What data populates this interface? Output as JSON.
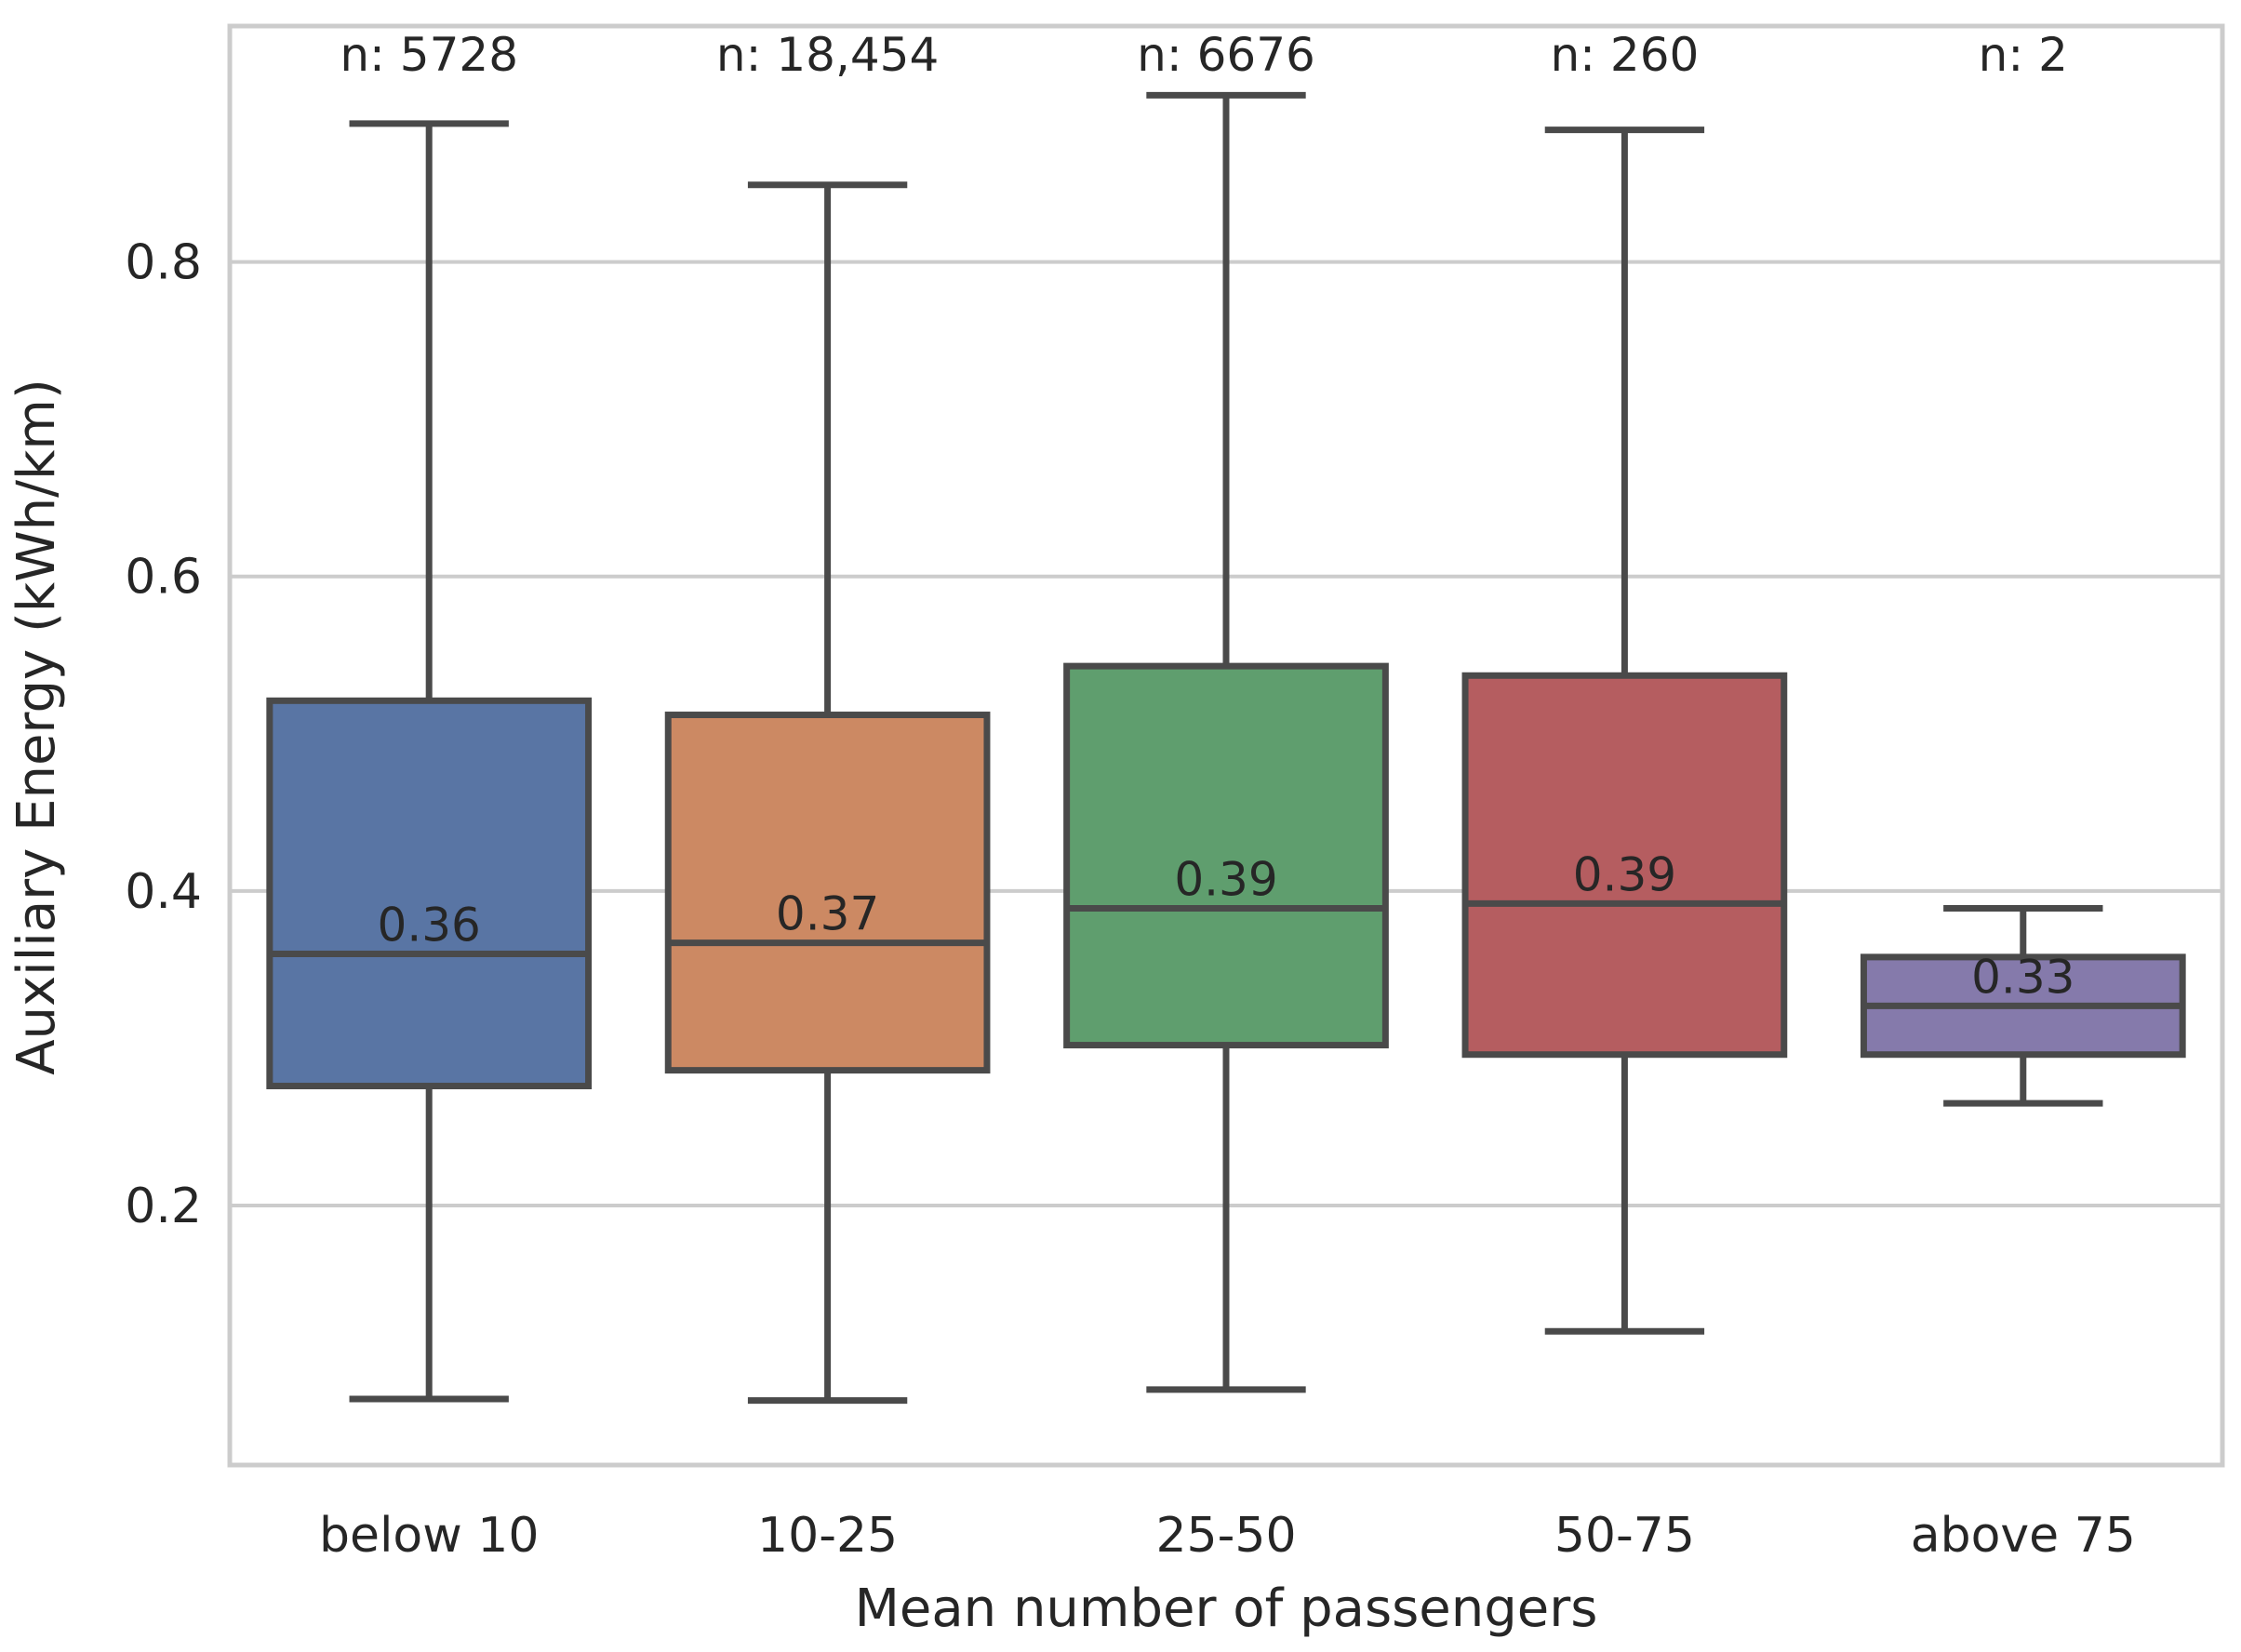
{
  "chart_data": {
    "type": "box",
    "xlabel": "Mean number of passengers",
    "ylabel": "Auxiliary Energy (kWh/km)",
    "ylim": [
      0.035,
      0.95
    ],
    "yticks": [
      0.2,
      0.4,
      0.6,
      0.8
    ],
    "ytick_labels": [
      "0.2",
      "0.4",
      "0.6",
      "0.8"
    ],
    "grid": "horizontal",
    "categories": [
      "below 10",
      "10-25",
      "25-50",
      "50-75",
      "above 75"
    ],
    "boxes": [
      {
        "category": "below 10",
        "whisker_low": 0.077,
        "q1": 0.276,
        "median": 0.36,
        "q3": 0.521,
        "whisker_high": 0.888,
        "median_label": "0.36",
        "n_label": "n: 5728",
        "color": "#5975a4"
      },
      {
        "category": "10-25",
        "whisker_low": 0.076,
        "q1": 0.286,
        "median": 0.367,
        "q3": 0.512,
        "whisker_high": 0.849,
        "median_label": "0.37",
        "n_label": "n: 18,454",
        "color": "#cc8963"
      },
      {
        "category": "25-50",
        "whisker_low": 0.083,
        "q1": 0.302,
        "median": 0.389,
        "q3": 0.543,
        "whisker_high": 0.906,
        "median_label": "0.39",
        "n_label": "n: 6676",
        "color": "#5f9e6e"
      },
      {
        "category": "50-75",
        "whisker_low": 0.12,
        "q1": 0.296,
        "median": 0.392,
        "q3": 0.537,
        "whisker_high": 0.884,
        "median_label": "0.39",
        "n_label": "n: 260",
        "color": "#b55d60"
      },
      {
        "category": "above 75",
        "whisker_low": 0.265,
        "q1": 0.296,
        "median": 0.327,
        "q3": 0.358,
        "whisker_high": 0.389,
        "median_label": "0.33",
        "n_label": "n: 2",
        "color": "#857aab"
      }
    ]
  }
}
